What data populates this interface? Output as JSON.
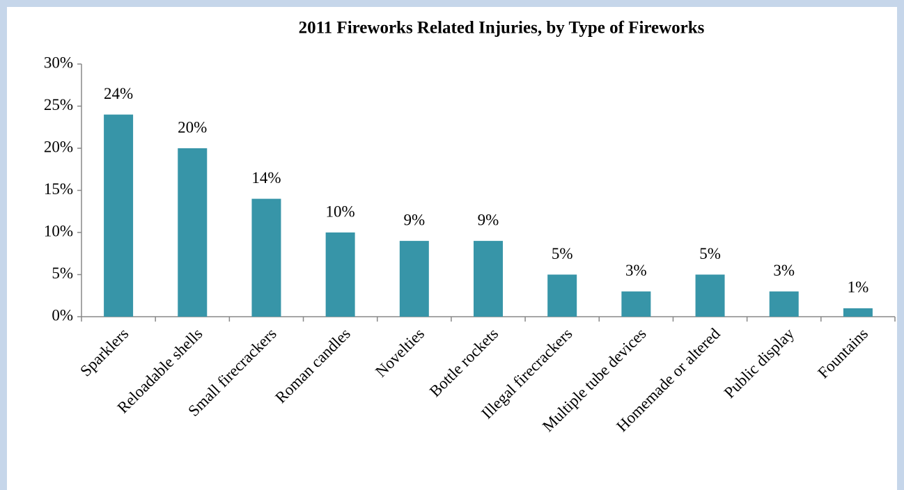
{
  "chart_data": {
    "type": "bar",
    "title": "2011 Fireworks Related Injuries, by Type of  Fireworks",
    "categories": [
      "Sparklers",
      "Reloadable shells",
      "Small firecrackers",
      "Roman candles",
      "Novelties",
      "Bottle rockets",
      "Illegal firecrackers",
      "Multiple tube devices",
      "Homemade or altered",
      "Public display",
      "Fountains"
    ],
    "values": [
      24,
      20,
      14,
      10,
      9,
      9,
      5,
      3,
      5,
      3,
      1
    ],
    "value_labels": [
      "24%",
      "20%",
      "14%",
      "10%",
      "9%",
      "9%",
      "5%",
      "3%",
      "5%",
      "3%",
      "1%"
    ],
    "color": "#3795a8",
    "ylim": [
      0,
      30
    ],
    "yticks": [
      {
        "value": 0,
        "label": "0%"
      },
      {
        "value": 5,
        "label": "5%"
      },
      {
        "value": 10,
        "label": "10%"
      },
      {
        "value": 15,
        "label": "15%"
      },
      {
        "value": 20,
        "label": "20%"
      },
      {
        "value": 25,
        "label": "25%"
      },
      {
        "value": 30,
        "label": "30%"
      }
    ],
    "grid": false
  }
}
